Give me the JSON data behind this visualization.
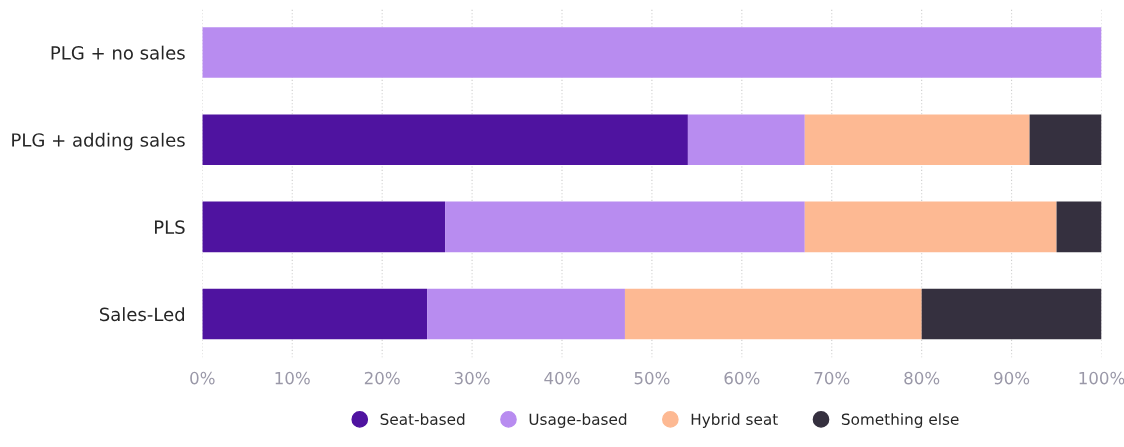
{
  "chart_data": {
    "type": "bar",
    "orientation": "horizontal",
    "stacked": true,
    "categories": [
      "PLG + no sales",
      "PLG + adding sales",
      "PLS",
      "Sales-Led"
    ],
    "series": [
      {
        "name": "Seat-based",
        "color": "#4f13a0",
        "values": [
          0,
          54,
          27,
          25
        ]
      },
      {
        "name": "Usage-based",
        "color": "#b88cf0",
        "values": [
          100,
          13,
          40,
          22
        ]
      },
      {
        "name": "Hybrid seat",
        "color": "#fdb993",
        "values": [
          0,
          25,
          28,
          33
        ]
      },
      {
        "name": "Something else",
        "color": "#35303f",
        "values": [
          0,
          8,
          5,
          20
        ]
      }
    ],
    "xlim": [
      0,
      100
    ],
    "xticks": [
      {
        "value": 0,
        "label": "0%"
      },
      {
        "value": 10,
        "label": "10%"
      },
      {
        "value": 20,
        "label": "20%"
      },
      {
        "value": 30,
        "label": "30%"
      },
      {
        "value": 40,
        "label": "40%"
      },
      {
        "value": 50,
        "label": "50%"
      },
      {
        "value": 60,
        "label": "60%"
      },
      {
        "value": 70,
        "label": "70%"
      },
      {
        "value": 80,
        "label": "80%"
      },
      {
        "value": 90,
        "label": "90%"
      },
      {
        "value": 100,
        "label": "100%"
      }
    ],
    "grid": "x",
    "legend": "bottom"
  }
}
